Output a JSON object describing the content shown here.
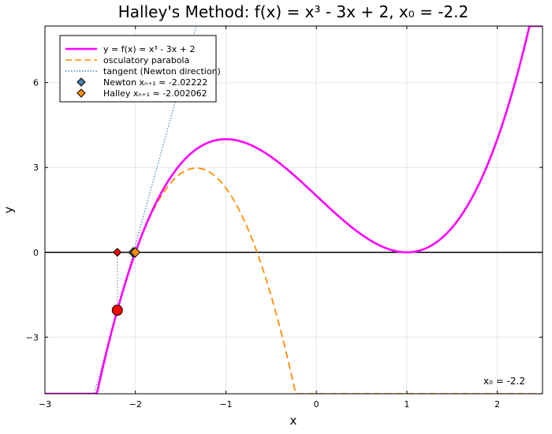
{
  "chart_data": {
    "type": "line",
    "title": "Halley's Method: f(x) = x³ - 3x + 2,  x₀ = -2.2",
    "xlabel": "x",
    "ylabel": "y",
    "xlim": [
      -3,
      2.5
    ],
    "ylim": [
      -5,
      8
    ],
    "xticks": [
      {
        "value": -3,
        "label": "−3"
      },
      {
        "value": -2,
        "label": "−2"
      },
      {
        "value": -1,
        "label": "−1"
      },
      {
        "value": 0,
        "label": "0"
      },
      {
        "value": 1,
        "label": "1"
      },
      {
        "value": 2,
        "label": "2"
      }
    ],
    "yticks": [
      {
        "value": -3,
        "label": "−3"
      },
      {
        "value": 0,
        "label": "0"
      },
      {
        "value": 3,
        "label": "3"
      },
      {
        "value": 6,
        "label": "6"
      }
    ],
    "grid": true,
    "legend_position": "top-left",
    "series": [
      {
        "name": "y = f(x) = x³ - 3x + 2",
        "kind": "function",
        "color": "#ff00ff",
        "style": "solid"
      },
      {
        "name": "osculatory parabola",
        "kind": "parabola",
        "color": "#ff8c00",
        "style": "dashed"
      },
      {
        "name": "tangent (Newton direction)",
        "kind": "tangent",
        "color": "#4682b4",
        "style": "dotted"
      },
      {
        "name": "Newton xₙ₊₁ ≈ -2.02222",
        "kind": "point",
        "x": -2.02222,
        "y": 0,
        "color": "#4682b4",
        "marker": "diamond"
      },
      {
        "name": "Halley xₙ₊₁ ≈ -2.002062",
        "kind": "point",
        "x": -2.002062,
        "y": 0,
        "color": "#ff8c00",
        "marker": "diamond"
      }
    ],
    "function": {
      "a": 1,
      "b": 0,
      "c": -3,
      "d": 2
    },
    "start_point": {
      "x": -2.2,
      "y": -2.048,
      "color": "#ff0000"
    },
    "start_projection": {
      "x": -2.2,
      "y": 0,
      "color": "#ff0000"
    },
    "annotation": "x₀ = -2.2",
    "colors": {
      "axis_line": "#000000",
      "grid": "#e6e6e6",
      "frame": "#000000"
    }
  }
}
